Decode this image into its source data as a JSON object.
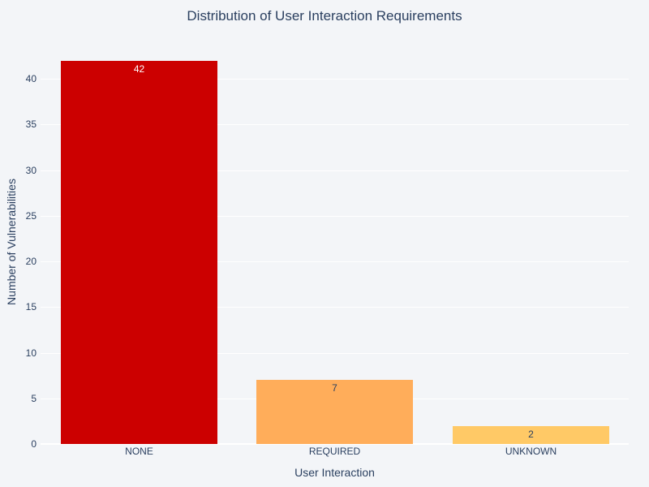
{
  "title": "Distribution of User Interaction Requirements",
  "chart_data": {
    "type": "bar",
    "title": "Distribution of User Interaction Requirements",
    "categories": [
      "NONE",
      "REQUIRED",
      "UNKNOWN"
    ],
    "values": [
      42,
      7,
      2
    ],
    "colors": [
      "#cc0000",
      "#ffad5a",
      "#ffc966"
    ],
    "text_colors": [
      "#ffffff",
      "#2a3f5f",
      "#2a3f5f"
    ],
    "xlabel": "User Interaction",
    "ylabel": "Number of Vulnerabilities",
    "ylim": [
      0,
      45
    ],
    "yticks": [
      0,
      5,
      10,
      15,
      20,
      25,
      30,
      35,
      40
    ],
    "grid": true
  }
}
